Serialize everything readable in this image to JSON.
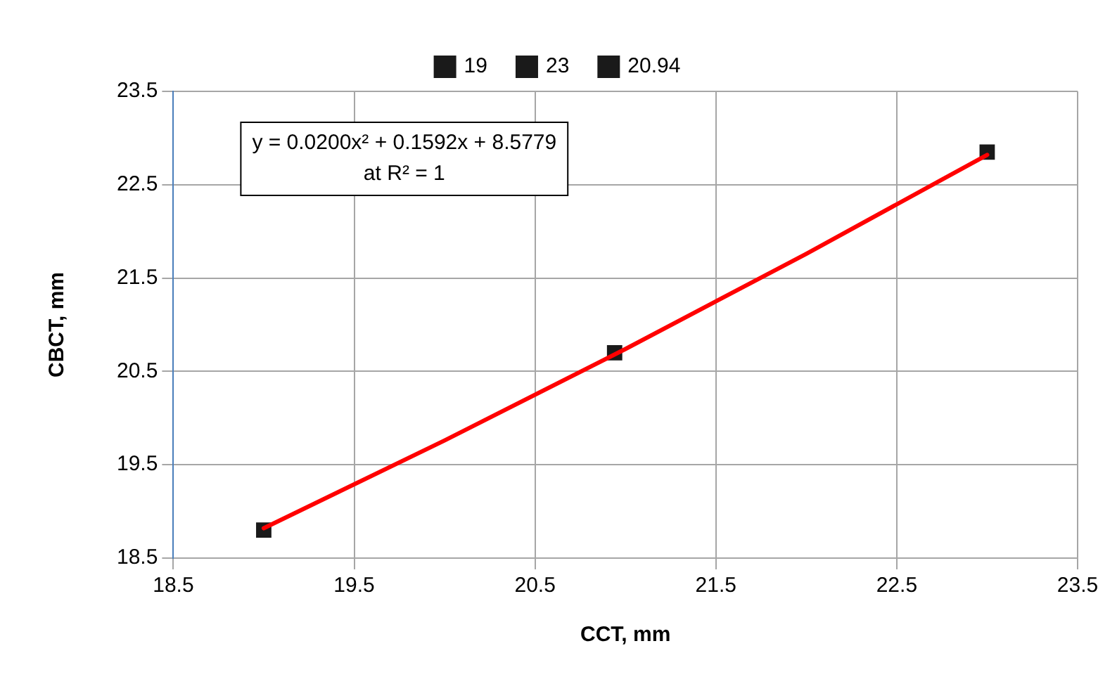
{
  "chart_data": {
    "type": "scatter",
    "xlabel": "CCT, mm",
    "ylabel": "CBCT, mm",
    "xlim": [
      18.5,
      23.5
    ],
    "xticks": [
      18.5,
      19.5,
      20.5,
      21.5,
      22.5,
      23.5
    ],
    "ylim": [
      18.5,
      23.5
    ],
    "yticks": [
      18.5,
      19.5,
      20.5,
      21.5,
      22.5,
      23.5
    ],
    "grid": true,
    "legend": "top",
    "marker": "square",
    "annotations": [
      "y = 0.0200x² + 0.1592x + 8.5779",
      "at R² = 1"
    ],
    "series": [
      {
        "name": "19",
        "color": "#1a1a1a",
        "x": [
          19
        ],
        "values": [
          18.8
        ]
      },
      {
        "name": "23",
        "color": "#1a1a1a",
        "x": [
          23
        ],
        "values": [
          22.85
        ]
      },
      {
        "name": "20.94",
        "color": "#1a1a1a",
        "x": [
          20.94
        ],
        "values": [
          20.7
        ]
      },
      {
        "type": "line",
        "color": "#ff0000",
        "marker": "none",
        "line_style": "solid",
        "x": [
          19,
          20,
          21,
          22,
          23
        ],
        "values": [
          18.82,
          19.76,
          20.74,
          21.76,
          22.82
        ]
      }
    ]
  }
}
